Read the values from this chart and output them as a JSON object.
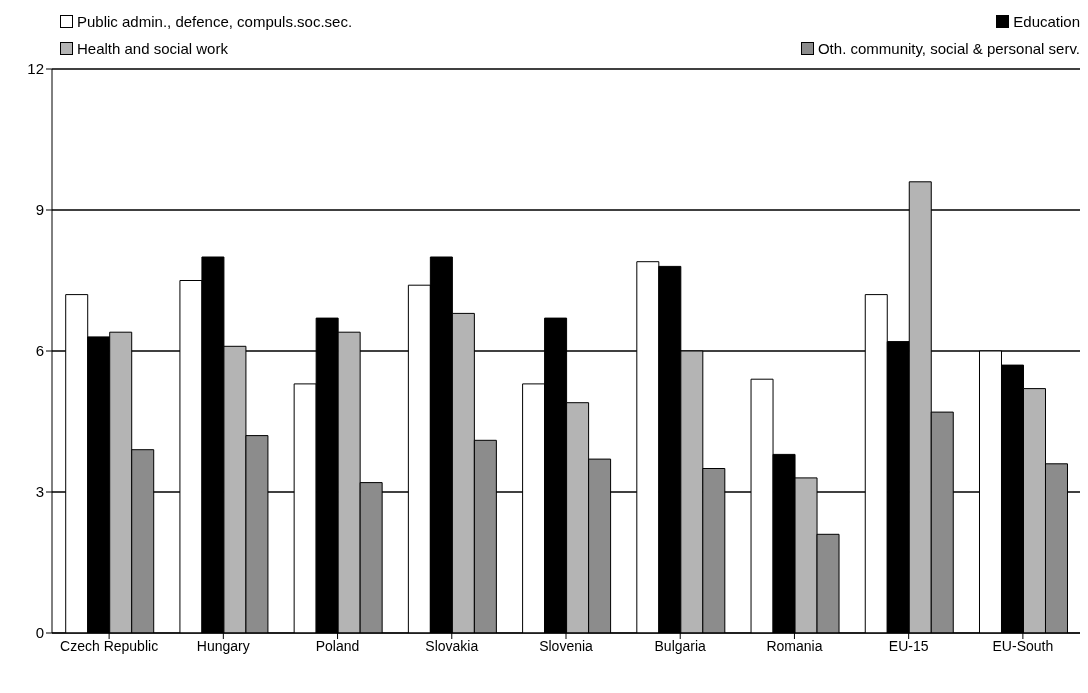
{
  "chart_data": {
    "type": "bar",
    "categories": [
      "Czech Republic",
      "Hungary",
      "Poland",
      "Slovakia",
      "Slovenia",
      "Bulgaria",
      "Romania",
      "EU-15",
      "EU-South"
    ],
    "series": [
      {
        "name": "Public admin., defence, compuls.soc.sec.",
        "color": "#ffffff",
        "values": [
          7.2,
          7.5,
          5.3,
          7.4,
          5.3,
          7.9,
          5.4,
          7.2,
          6.0
        ]
      },
      {
        "name": "Education",
        "color": "#000000",
        "values": [
          6.3,
          8.0,
          6.7,
          8.0,
          6.7,
          7.8,
          3.8,
          6.2,
          5.7
        ]
      },
      {
        "name": "Health and social work",
        "color": "#b4b4b4",
        "values": [
          6.4,
          6.1,
          6.4,
          6.8,
          4.9,
          6.0,
          3.3,
          9.6,
          5.2
        ]
      },
      {
        "name": "Oth. community, social & personal serv.",
        "color": "#8c8c8c",
        "values": [
          3.9,
          4.2,
          3.2,
          4.1,
          3.7,
          3.5,
          2.1,
          4.7,
          3.6
        ]
      }
    ],
    "ylim": [
      0,
      12
    ],
    "yticks": [
      0,
      3,
      6,
      9,
      12
    ],
    "grid": "y",
    "legend": "top"
  }
}
